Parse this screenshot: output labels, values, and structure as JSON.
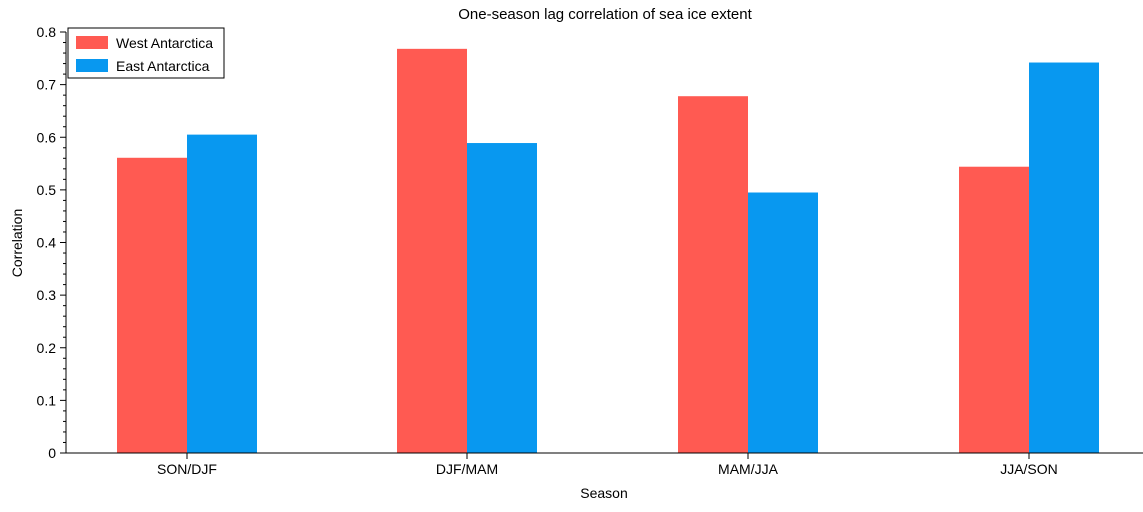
{
  "chart_data": {
    "type": "bar",
    "title": "One-season lag correlation of sea ice extent",
    "xlabel": "Season",
    "ylabel": "Correlation",
    "categories": [
      "SON/DJF",
      "DJF/MAM",
      "MAM/JJA",
      "JJA/SON"
    ],
    "series": [
      {
        "name": "West Antarctica",
        "color": "#ff5a52",
        "values": [
          0.561,
          0.768,
          0.678,
          0.544
        ]
      },
      {
        "name": "East Antarctica",
        "color": "#0898f0",
        "values": [
          0.605,
          0.589,
          0.495,
          0.742
        ]
      }
    ],
    "ylim": [
      0,
      0.8
    ],
    "yticks": [
      "0",
      "0.1",
      "0.2",
      "0.3",
      "0.4",
      "0.5",
      "0.6",
      "0.7",
      "0.8"
    ],
    "grid": false,
    "legend_position": "top-left"
  }
}
